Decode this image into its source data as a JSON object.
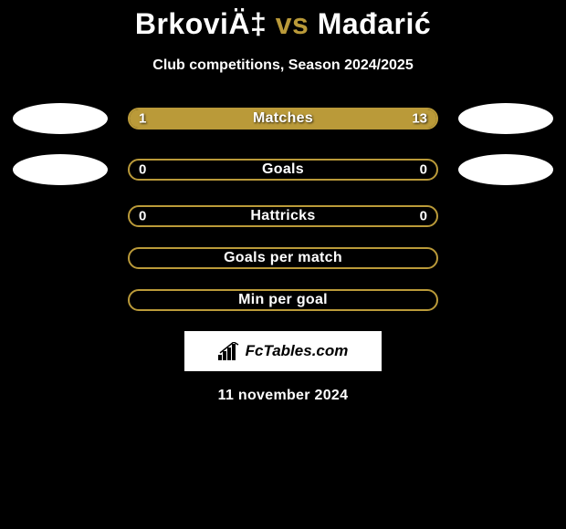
{
  "title": {
    "player1": "BrkoviÄ‡",
    "vs": "vs",
    "player2": "Mađarić"
  },
  "subtitle": "Club competitions, Season 2024/2025",
  "accent_color": "#ba9a39",
  "background_color": "#000000",
  "text_color": "#ffffff",
  "bars": [
    {
      "label": "Matches",
      "left_value": "1",
      "right_value": "13",
      "left_pct": 18,
      "right_pct": 82,
      "show_portraits": true
    },
    {
      "label": "Goals",
      "left_value": "0",
      "right_value": "0",
      "left_pct": 0,
      "right_pct": 0,
      "show_portraits": true
    },
    {
      "label": "Hattricks",
      "left_value": "0",
      "right_value": "0",
      "left_pct": 0,
      "right_pct": 0,
      "show_portraits": false
    },
    {
      "label": "Goals per match",
      "left_value": "",
      "right_value": "",
      "left_pct": 0,
      "right_pct": 0,
      "show_portraits": false
    },
    {
      "label": "Min per goal",
      "left_value": "",
      "right_value": "",
      "left_pct": 0,
      "right_pct": 0,
      "show_portraits": false
    }
  ],
  "brand": "FcTables.com",
  "date": "11 november 2024"
}
